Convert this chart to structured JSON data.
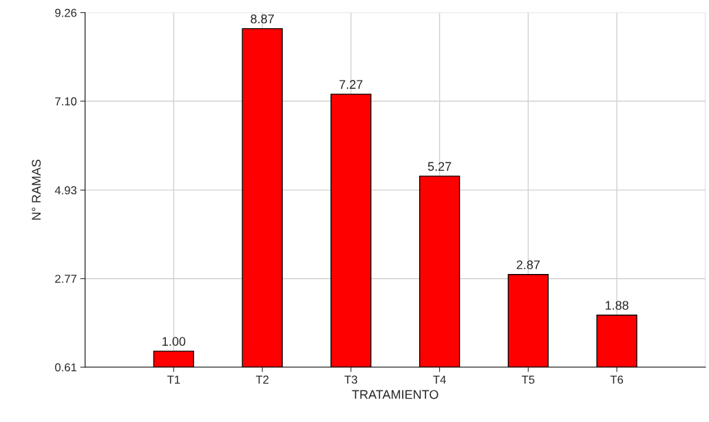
{
  "chart_data": {
    "type": "bar",
    "xlabel": "TRATAMIENTO",
    "ylabel": "N° RAMAS",
    "categories": [
      "T1",
      "T2",
      "T3",
      "T4",
      "T5",
      "T6"
    ],
    "values": [
      1.0,
      8.87,
      7.27,
      5.27,
      2.87,
      1.88
    ],
    "value_labels": [
      "1.00",
      "8.87",
      "7.27",
      "5.27",
      "2.87",
      "1.88"
    ],
    "color": "#ff0000",
    "ylim": [
      0.61,
      9.26
    ],
    "yticks": [
      0.61,
      2.77,
      4.93,
      {
        "value": 7.1,
        "label": "7.10"
      },
      9.26
    ],
    "grid": true,
    "legend": false
  }
}
